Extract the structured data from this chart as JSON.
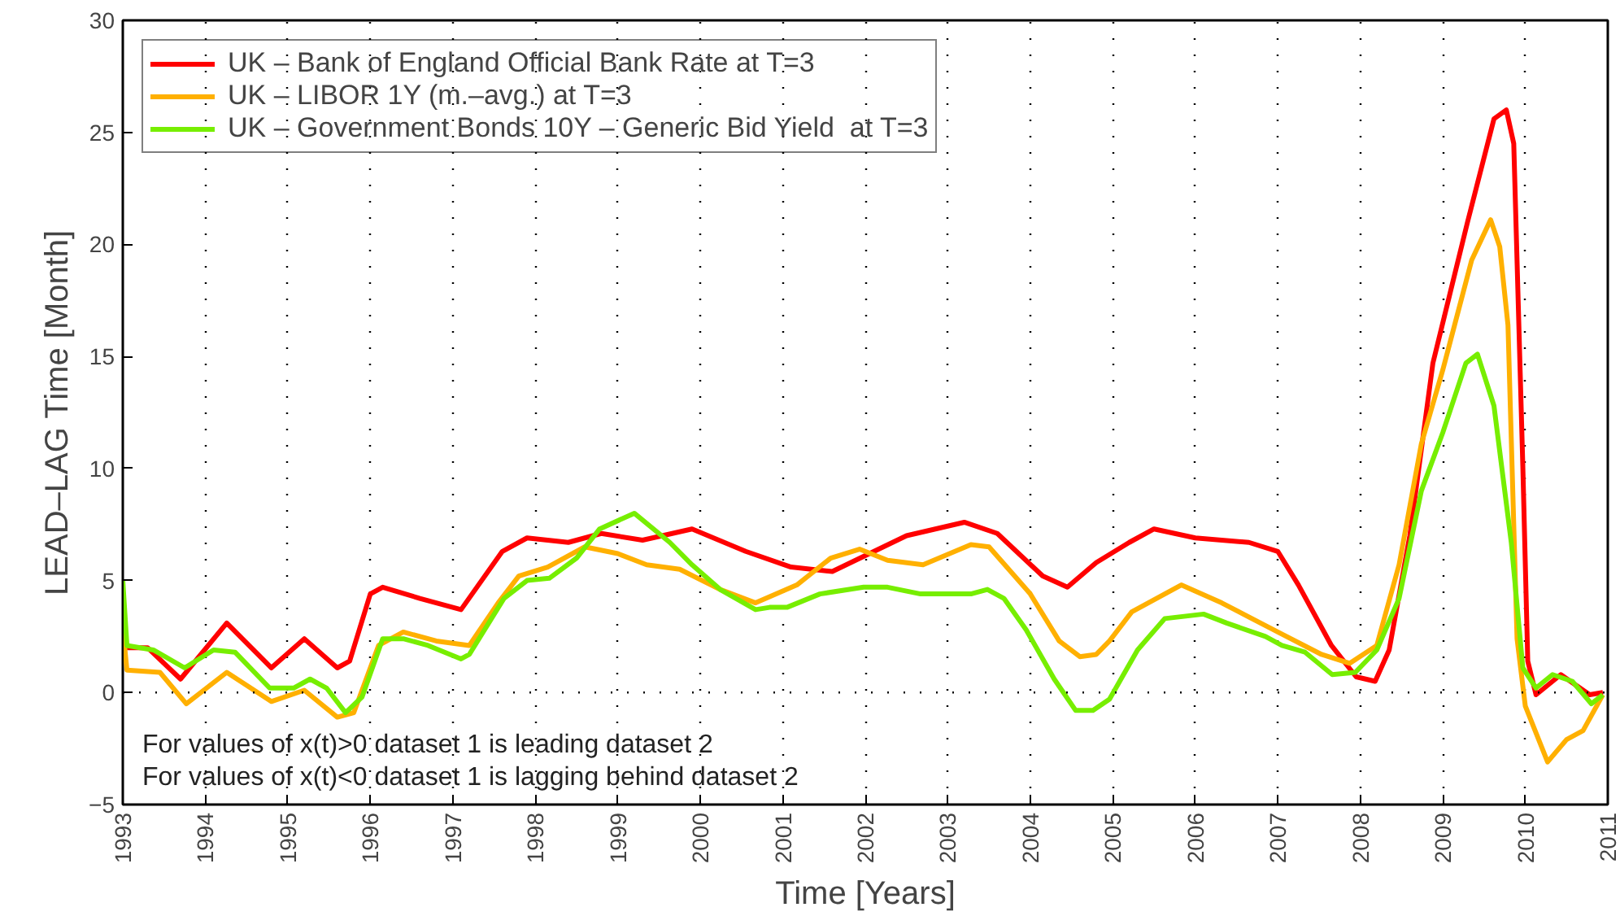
{
  "chart_data": {
    "type": "line",
    "xlabel": "Time [Years]",
    "ylabel": "LEAD–LAG Time [Month]",
    "xlim": [
      1993,
      2011
    ],
    "ylim": [
      -5,
      30
    ],
    "xticks": [
      1993,
      1994,
      1995,
      1996,
      1997,
      1998,
      1999,
      2000,
      2001,
      2002,
      2003,
      2004,
      2005,
      2006,
      2007,
      2008,
      2009,
      2010,
      2011
    ],
    "yticks": [
      -5,
      0,
      5,
      10,
      15,
      20,
      25,
      30
    ],
    "grid": "x",
    "legend": "top left",
    "marker": "none",
    "line_style": "solid",
    "ref_lines": [
      {
        "axis": "y",
        "value": 0,
        "line_style": "dotted",
        "color": "#000000"
      }
    ],
    "annotations": [
      "For values of x(t)>0 dataset 1 is leading dataset 2",
      "For values of x(t)<0 dataset 1 is lagging behind dataset 2"
    ],
    "series": [
      {
        "name": "UK – Bank of England Official Bank Rate at T=3",
        "color": "#ff0000",
        "x": [
          1993.05,
          1993.3,
          1993.7,
          1994.26,
          1994.8,
          1995.2,
          1995.6,
          1995.75,
          1996.0,
          1996.15,
          1996.6,
          1997.1,
          1997.6,
          1997.9,
          1998.4,
          1998.8,
          1999.3,
          1999.9,
          2000.55,
          2001.1,
          2001.6,
          2002.5,
          2003.2,
          2003.6,
          2004.15,
          2004.45,
          2004.8,
          2005.2,
          2005.5,
          2006.0,
          2006.65,
          2007.0,
          2007.25,
          2007.65,
          2007.95,
          2008.18,
          2008.35,
          2008.6,
          2008.88,
          2009.08,
          2009.3,
          2009.62,
          2009.77,
          2009.86,
          2009.97,
          2010.03,
          2010.13,
          2010.43,
          2010.78,
          2010.94
        ],
        "values": [
          2.0,
          2.0,
          0.6,
          3.1,
          1.1,
          2.4,
          1.1,
          1.4,
          4.4,
          4.7,
          4.2,
          3.7,
          6.3,
          6.9,
          6.7,
          7.1,
          6.8,
          7.3,
          6.3,
          5.6,
          5.4,
          7.0,
          7.6,
          7.1,
          5.2,
          4.7,
          5.8,
          6.7,
          7.3,
          6.9,
          6.7,
          6.3,
          4.8,
          2.1,
          0.7,
          0.5,
          1.9,
          7.0,
          14.7,
          17.7,
          21.0,
          25.6,
          26.0,
          24.5,
          10.1,
          1.4,
          -0.1,
          0.8,
          -0.1,
          0.0
        ]
      },
      {
        "name": "UK – LIBOR 1Y (m.–avg.) at T=3",
        "color": "#ffb000",
        "x": [
          1993.0,
          1993.05,
          1993.45,
          1993.77,
          1994.26,
          1994.8,
          1995.2,
          1995.6,
          1995.8,
          1996.1,
          1996.4,
          1996.8,
          1997.2,
          1997.55,
          1997.8,
          1998.15,
          1998.6,
          1999.0,
          1999.35,
          1999.75,
          2000.24,
          2000.67,
          2001.17,
          2001.58,
          2001.93,
          2002.27,
          2002.7,
          2003.28,
          2003.5,
          2004.0,
          2004.35,
          2004.6,
          2004.8,
          2004.96,
          2005.23,
          2005.83,
          2006.32,
          2007.0,
          2007.53,
          2007.87,
          2008.2,
          2008.47,
          2008.74,
          2009.0,
          2009.35,
          2009.58,
          2009.69,
          2009.79,
          2009.9,
          2010.0,
          2010.27,
          2010.5,
          2010.7,
          2010.94
        ],
        "values": [
          2.9,
          1.0,
          0.9,
          -0.5,
          0.9,
          -0.4,
          0.1,
          -1.1,
          -0.9,
          2.1,
          2.7,
          2.3,
          2.1,
          4.0,
          5.2,
          5.6,
          6.5,
          6.2,
          5.7,
          5.5,
          4.6,
          4.0,
          4.8,
          6.0,
          6.4,
          5.9,
          5.7,
          6.6,
          6.5,
          4.4,
          2.3,
          1.6,
          1.7,
          2.3,
          3.6,
          4.8,
          4.0,
          2.7,
          1.7,
          1.3,
          2.1,
          5.7,
          11.1,
          14.4,
          19.3,
          21.1,
          19.9,
          16.4,
          2.4,
          -0.6,
          -3.1,
          -2.1,
          -1.7,
          -0.1
        ]
      },
      {
        "name": "UK – Government Bonds 10Y – Generic Bid Yield  at T=3",
        "color": "#77ee00",
        "x": [
          1993.0,
          1993.05,
          1993.37,
          1993.75,
          1994.1,
          1994.36,
          1994.78,
          1995.07,
          1995.27,
          1995.47,
          1995.7,
          1995.9,
          1996.15,
          1996.4,
          1996.7,
          1997.1,
          1997.2,
          1997.62,
          1997.9,
          1998.17,
          1998.5,
          1998.78,
          1999.2,
          1999.63,
          1999.9,
          2000.24,
          2000.67,
          2000.84,
          2001.05,
          2001.45,
          2001.98,
          2002.27,
          2002.67,
          2003.28,
          2003.48,
          2003.68,
          2003.95,
          2004.29,
          2004.55,
          2004.76,
          2004.96,
          2005.3,
          2005.63,
          2006.1,
          2006.38,
          2006.85,
          2007.05,
          2007.33,
          2007.66,
          2007.94,
          2008.2,
          2008.47,
          2008.74,
          2009.0,
          2009.28,
          2009.42,
          2009.62,
          2009.83,
          2009.97,
          2010.13,
          2010.33,
          2010.57,
          2010.8,
          2010.94
        ],
        "values": [
          5.0,
          2.1,
          1.9,
          1.1,
          1.9,
          1.8,
          0.2,
          0.2,
          0.6,
          0.2,
          -0.9,
          -0.2,
          2.4,
          2.4,
          2.1,
          1.5,
          1.7,
          4.2,
          5.0,
          5.1,
          6.0,
          7.3,
          8.0,
          6.7,
          5.7,
          4.6,
          3.7,
          3.8,
          3.8,
          4.4,
          4.7,
          4.7,
          4.4,
          4.4,
          4.6,
          4.2,
          2.8,
          0.6,
          -0.8,
          -0.8,
          -0.3,
          1.9,
          3.3,
          3.5,
          3.1,
          2.5,
          2.1,
          1.8,
          0.8,
          0.9,
          1.9,
          4.2,
          9.0,
          11.6,
          14.7,
          15.1,
          12.8,
          6.7,
          1.1,
          0.2,
          0.8,
          0.5,
          -0.5,
          -0.1
        ]
      }
    ]
  }
}
